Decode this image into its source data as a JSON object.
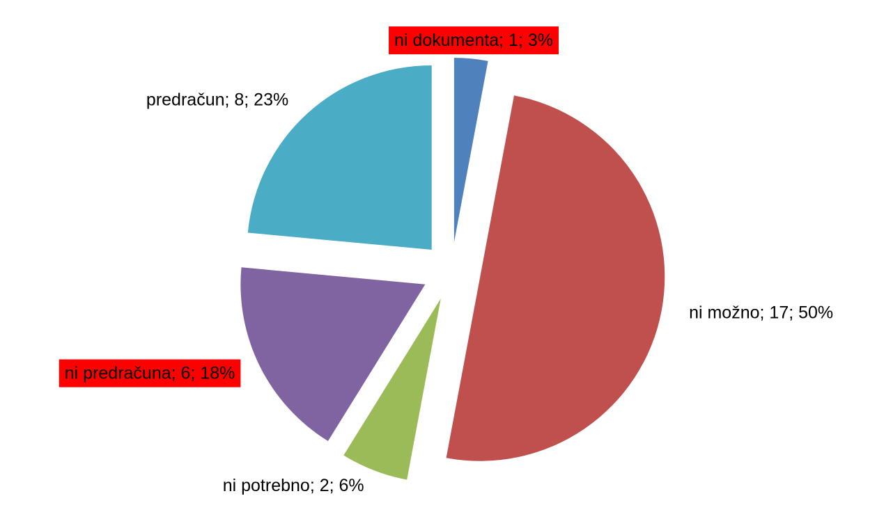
{
  "chart_data": {
    "type": "pie",
    "values": [
      1,
      17,
      2,
      6,
      8
    ],
    "value_labels": [
      "ni dokumenta; 1; 3%",
      "ni možno; 17; 50%",
      "ni potrebno; 2; 6%",
      "ni predračuna; 6; 18%",
      "predračun; 8; 23%"
    ],
    "colors": [
      "#4f81bd",
      "#c0504d",
      "#9bbb59",
      "#8064a2",
      "#4bacc6"
    ],
    "label_highlight": [
      true,
      false,
      false,
      true,
      false
    ],
    "highlight_color": "#ff0000"
  }
}
